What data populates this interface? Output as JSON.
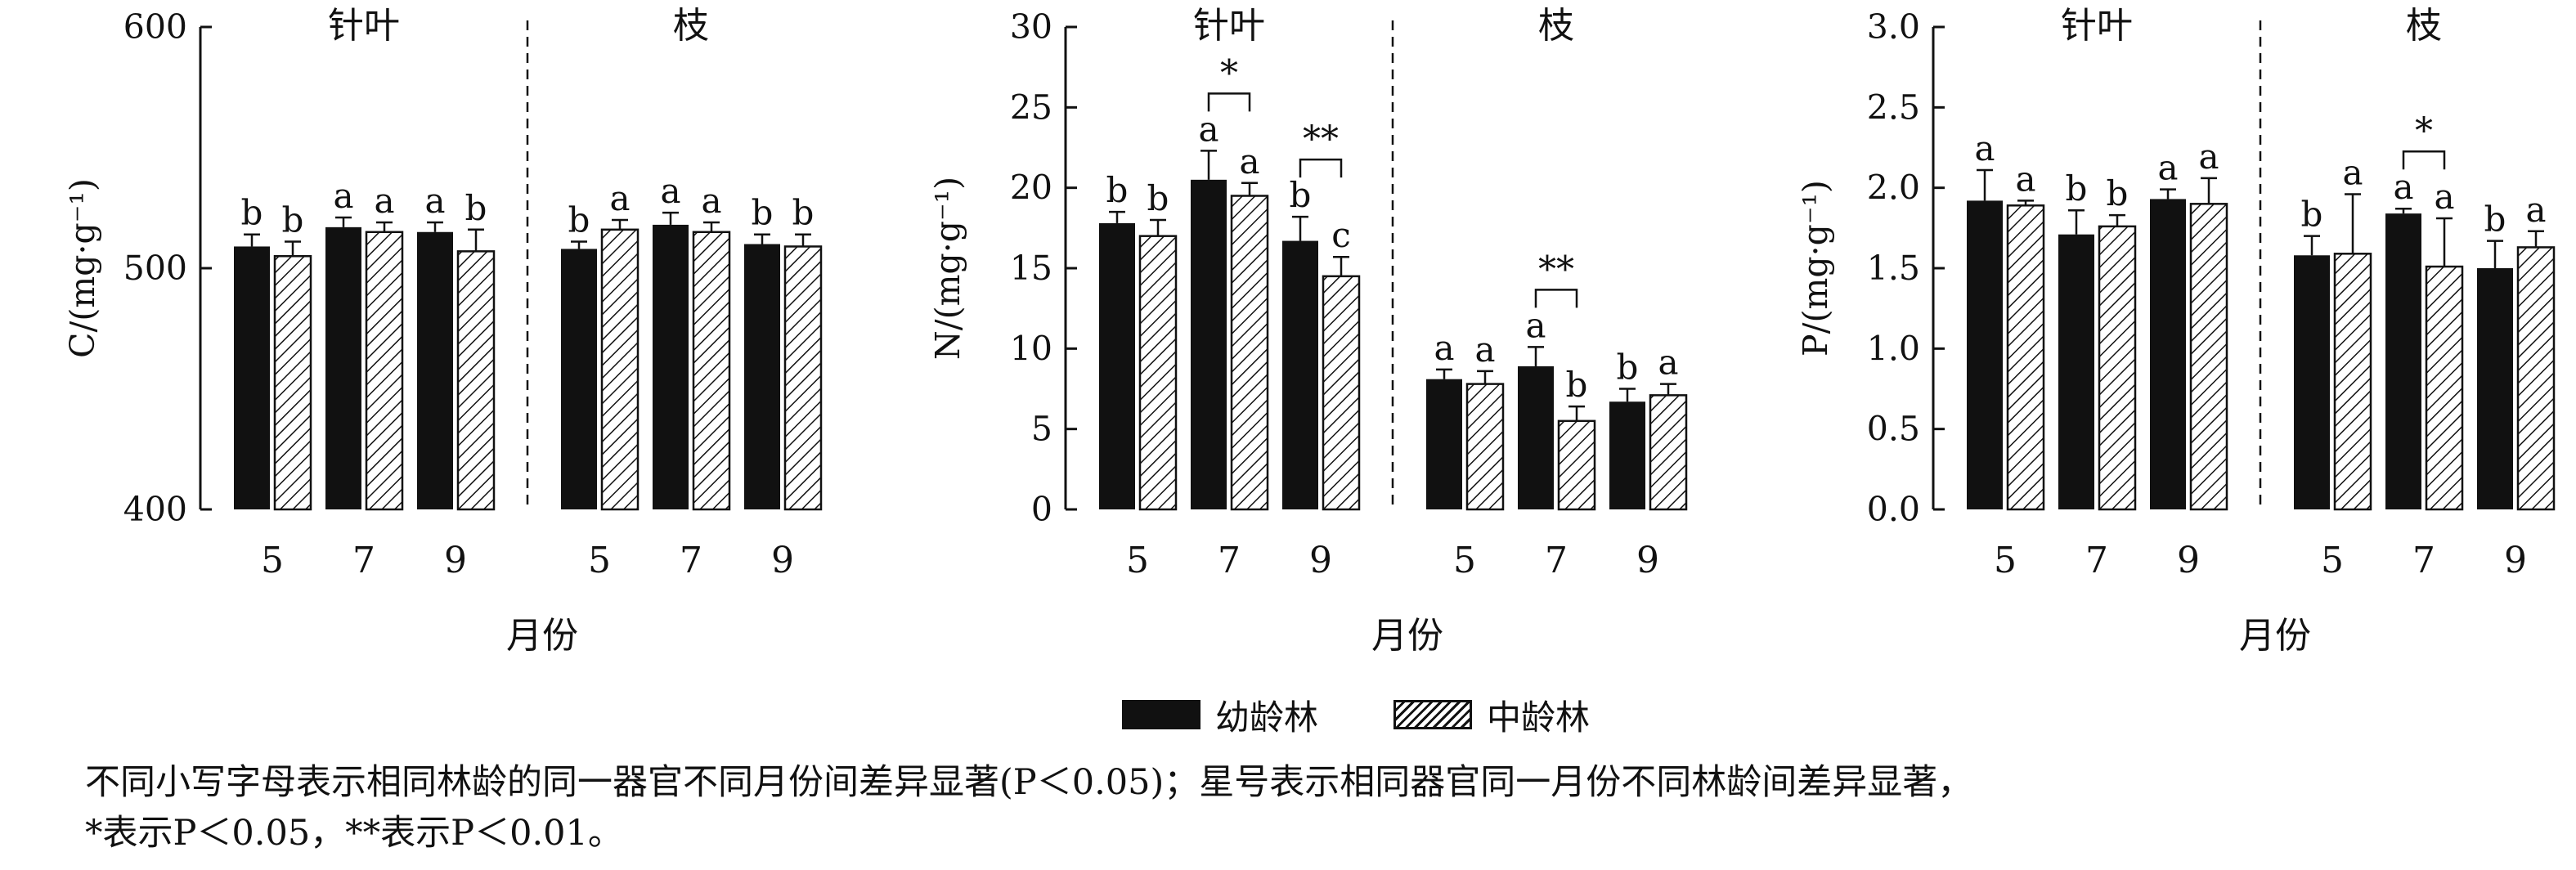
{
  "chart_data": [
    {
      "type": "bar",
      "ylabel": "C/(mg·g⁻¹)",
      "xlabel": "月份",
      "ylim": [
        400,
        600
      ],
      "yticks": [
        "400",
        "500",
        "600"
      ],
      "panels": [
        "针叶",
        "枝"
      ],
      "categories": [
        "5",
        "7",
        "9"
      ],
      "series": [
        {
          "name": "幼龄林",
          "values": [
            [
              509,
              517,
              515
            ],
            [
              508,
              518,
              510
            ]
          ],
          "errors": [
            [
              5,
              4,
              4
            ],
            [
              3,
              5,
              4
            ]
          ],
          "letters": [
            [
              "b",
              "a",
              "a"
            ],
            [
              "b",
              "a",
              "b"
            ]
          ]
        },
        {
          "name": "中龄林",
          "values": [
            [
              505,
              515,
              507
            ],
            [
              516,
              515,
              509
            ]
          ],
          "errors": [
            [
              6,
              4,
              9
            ],
            [
              4,
              4,
              5
            ]
          ],
          "letters": [
            [
              "b",
              "a",
              "b"
            ],
            [
              "a",
              "a",
              "b"
            ]
          ]
        }
      ],
      "significance": []
    },
    {
      "type": "bar",
      "ylabel": "N/(mg·g⁻¹)",
      "xlabel": "月份",
      "ylim": [
        0,
        30
      ],
      "yticks": [
        "0",
        "5",
        "10",
        "15",
        "20",
        "25",
        "30"
      ],
      "panels": [
        "针叶",
        "枝"
      ],
      "categories": [
        "5",
        "7",
        "9"
      ],
      "series": [
        {
          "name": "幼龄林",
          "values": [
            [
              17.8,
              20.5,
              16.7
            ],
            [
              8.1,
              8.9,
              6.7
            ]
          ],
          "errors": [
            [
              0.7,
              1.8,
              1.5
            ],
            [
              0.6,
              1.2,
              0.8
            ]
          ],
          "letters": [
            [
              "b",
              "a",
              "b"
            ],
            [
              "a",
              "a",
              "b"
            ]
          ]
        },
        {
          "name": "中龄林",
          "values": [
            [
              17.0,
              19.5,
              14.5
            ],
            [
              7.8,
              5.5,
              7.1
            ]
          ],
          "errors": [
            [
              1.0,
              0.8,
              1.2
            ],
            [
              0.8,
              0.9,
              0.7
            ]
          ],
          "letters": [
            [
              "b",
              "a",
              "c"
            ],
            [
              "a",
              "b",
              "a"
            ]
          ]
        }
      ],
      "significance": [
        {
          "panel": 0,
          "category": 1,
          "mark": "*"
        },
        {
          "panel": 0,
          "category": 2,
          "mark": "**"
        },
        {
          "panel": 1,
          "category": 1,
          "mark": "**"
        }
      ]
    },
    {
      "type": "bar",
      "ylabel": "P/(mg·g⁻¹)",
      "xlabel": "月份",
      "ylim": [
        0,
        3
      ],
      "yticks": [
        "0.0",
        "0.5",
        "1.0",
        "1.5",
        "2.0",
        "2.5",
        "3.0"
      ],
      "panels": [
        "针叶",
        "枝"
      ],
      "categories": [
        "5",
        "7",
        "9"
      ],
      "series": [
        {
          "name": "幼龄林",
          "values": [
            [
              1.92,
              1.71,
              1.93
            ],
            [
              1.58,
              1.84,
              1.5
            ]
          ],
          "errors": [
            [
              0.19,
              0.15,
              0.06
            ],
            [
              0.12,
              0.03,
              0.17
            ]
          ],
          "letters": [
            [
              "a",
              "b",
              "a"
            ],
            [
              "b",
              "a",
              "b"
            ]
          ]
        },
        {
          "name": "中龄林",
          "values": [
            [
              1.89,
              1.76,
              1.9
            ],
            [
              1.59,
              1.51,
              1.63
            ]
          ],
          "errors": [
            [
              0.03,
              0.07,
              0.16
            ],
            [
              0.37,
              0.3,
              0.1
            ]
          ],
          "letters": [
            [
              "a",
              "b",
              "a"
            ],
            [
              "a",
              "a",
              "a"
            ]
          ]
        }
      ],
      "significance": [
        {
          "panel": 1,
          "category": 1,
          "mark": "*"
        }
      ]
    }
  ],
  "legend": {
    "items": [
      {
        "label": "幼龄林"
      },
      {
        "label": "中龄林"
      }
    ]
  },
  "caption": {
    "line1": "不同小写字母表示相同林龄的同一器官不同月份间差异显著(P＜0.05)；星号表示相同器官同一月份不同林龄间差异显著，",
    "line2": "*表示P＜0.05，**表示P＜0.01。"
  }
}
